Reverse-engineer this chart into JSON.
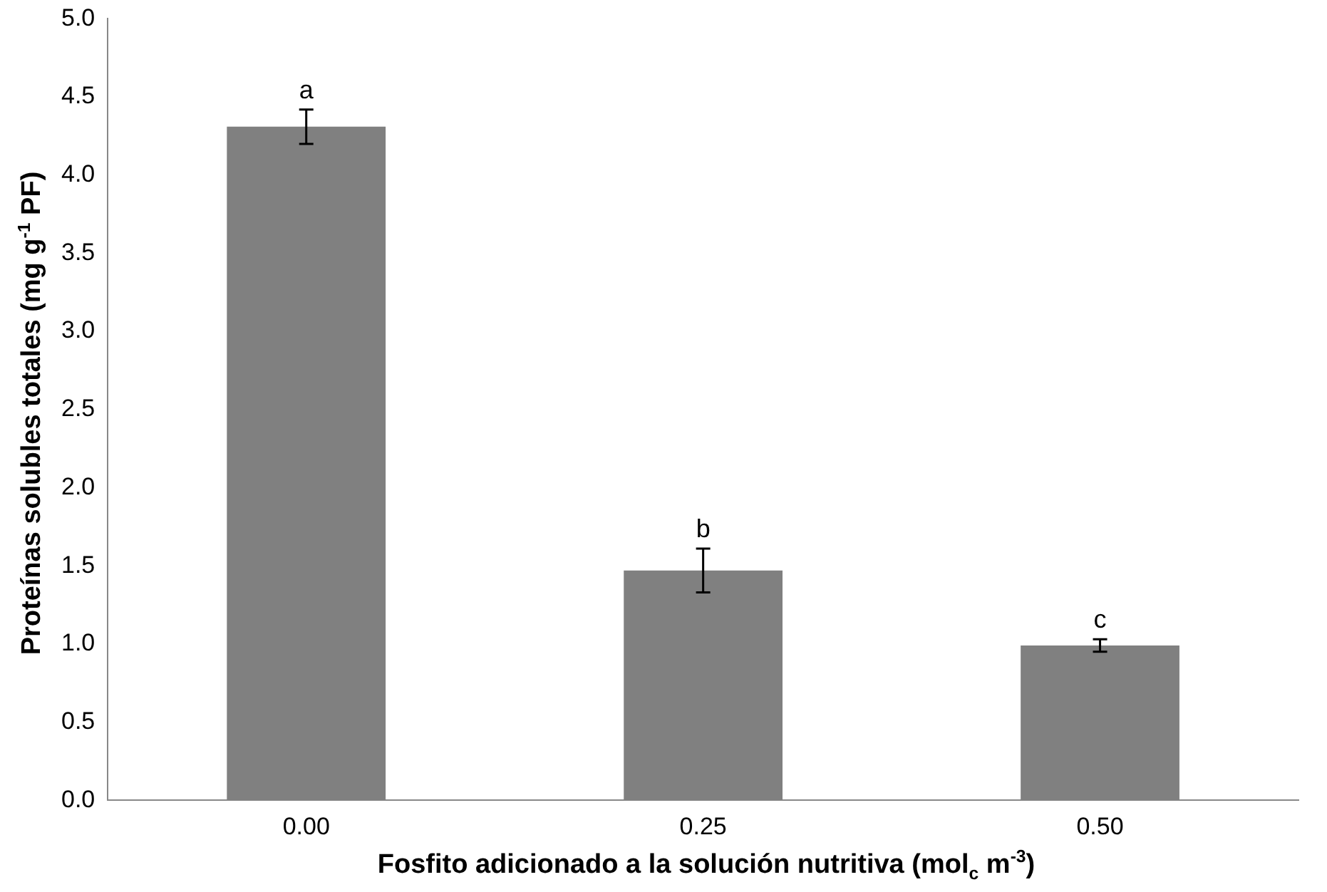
{
  "chart_data": {
    "type": "bar",
    "xlabel": "Fosfito adicionado a la solución nutritiva (mol$_{c}$ m$^{-3}$)",
    "ylabel": "Proteínas solubles totales (mg g$^{-1}$ PF)",
    "categories": [
      "0.00",
      "0.25",
      "0.50"
    ],
    "values": [
      4.31,
      1.47,
      0.99
    ],
    "color": "#808080",
    "errors": [
      0.11,
      0.14,
      0.04
    ],
    "ylim": [
      0,
      5
    ],
    "yticks": [
      {
        "value": 0,
        "label": "0.0"
      },
      {
        "value": 0.5,
        "label": "0.5"
      },
      {
        "value": 1,
        "label": "1.0"
      },
      {
        "value": 1.5,
        "label": "1.5"
      },
      {
        "value": 2,
        "label": "2.0"
      },
      {
        "value": 2.5,
        "label": "2.5"
      },
      {
        "value": 3,
        "label": "3.0"
      },
      {
        "value": 3.5,
        "label": "3.5"
      },
      {
        "value": 4,
        "label": "4.0"
      },
      {
        "value": 4.5,
        "label": "4.5"
      },
      {
        "value": 5,
        "label": "5.0"
      }
    ],
    "grid": false,
    "legend": false,
    "annotations": [
      {
        "text": "a",
        "x": "0.00",
        "y": 4.42
      },
      {
        "text": "b",
        "x": "0.25",
        "y": 1.61
      },
      {
        "text": "c",
        "x": "0.50",
        "y": 1.03
      }
    ]
  }
}
